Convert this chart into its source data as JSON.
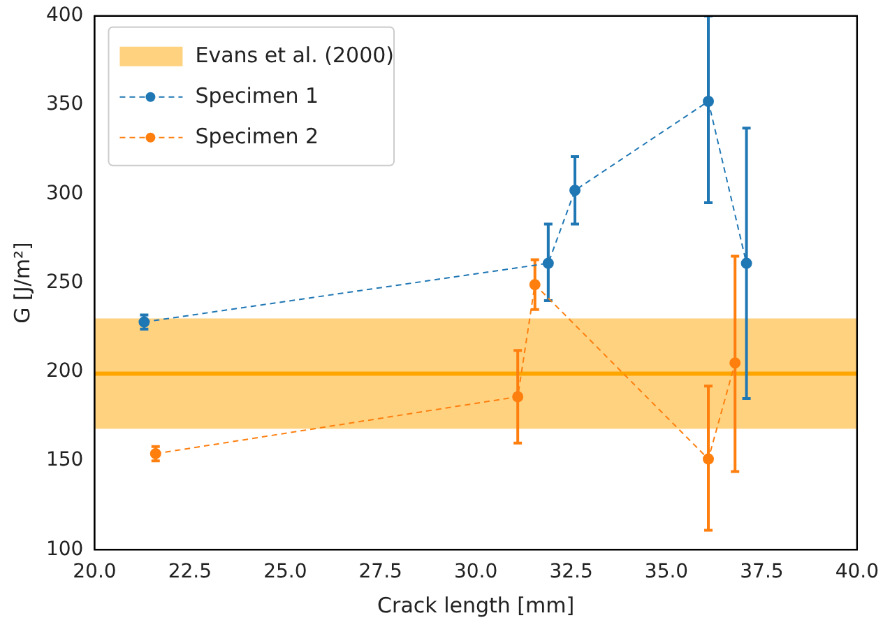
{
  "chart_data": {
    "type": "line",
    "xlabel": "Crack length [mm]",
    "ylabel": "G [J/m²]",
    "xlim": [
      20,
      40
    ],
    "xticks": [
      {
        "value": 20,
        "label": "20.0"
      },
      {
        "value": 22.5,
        "label": "22.5"
      },
      {
        "value": 25,
        "label": "25.0"
      },
      {
        "value": 27.5,
        "label": "27.5"
      },
      {
        "value": 30,
        "label": "30.0"
      },
      {
        "value": 32.5,
        "label": "32.5"
      },
      {
        "value": 35,
        "label": "35.0"
      },
      {
        "value": 37.5,
        "label": "37.5"
      },
      {
        "value": 40,
        "label": "40.0"
      }
    ],
    "ylim": [
      100,
      400
    ],
    "yticks": [
      100,
      150,
      200,
      250,
      300,
      350,
      400
    ],
    "series": [
      {
        "name": "Specimen 1",
        "color": "#1f77b4",
        "x": [
          21.3,
          31.9,
          32.6,
          36.1,
          37.1
        ],
        "values": [
          228,
          261,
          302,
          352,
          261
        ],
        "errors": [
          [
            224,
            232
          ],
          [
            240,
            283
          ],
          [
            283,
            321
          ],
          [
            295,
            400
          ],
          [
            185,
            337
          ]
        ]
      },
      {
        "name": "Specimen 2",
        "color": "#ff7f0e",
        "x": [
          21.6,
          31.1,
          31.55,
          36.1,
          36.8
        ],
        "values": [
          154,
          186,
          249,
          151,
          205
        ],
        "errors": [
          [
            150,
            158
          ],
          [
            160,
            212
          ],
          [
            235,
            263
          ],
          [
            111,
            192
          ],
          [
            144,
            265
          ]
        ]
      }
    ],
    "bands": [
      {
        "axis": "y",
        "from": 168,
        "to": 230,
        "label": "Evans et al. (2000)",
        "color": "#ffd280"
      }
    ],
    "ref_lines": [
      {
        "axis": "y",
        "value": 199,
        "color": "#ffa500"
      }
    ],
    "marker": "circle",
    "line_style": "dashed",
    "legend": "top left",
    "grid": false
  }
}
